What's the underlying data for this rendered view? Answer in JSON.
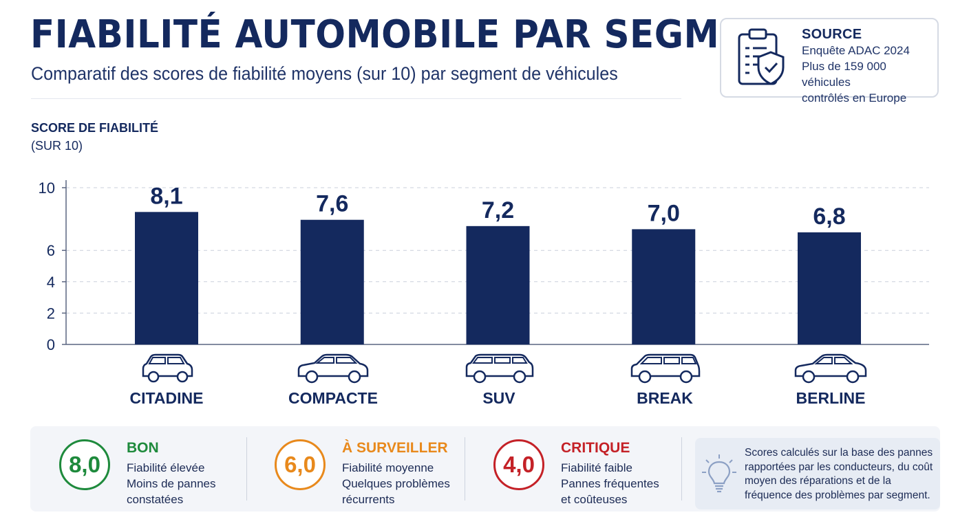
{
  "title": "FIABILITÉ AUTOMOBILE PAR SEGMENT",
  "subtitle": "Comparatif des scores de fiabilité moyens (sur 10) par segment de véhicules",
  "source": {
    "label": "SOURCE",
    "lines": [
      "Enquête ADAC 2024",
      "Plus de 159 000 véhicules",
      "contrôlés en Europe"
    ],
    "icon": "clipboard-shield-check-icon"
  },
  "chart_data": {
    "type": "bar",
    "ylabel_line1": "SCORE DE FIABILITÉ",
    "ylabel_line2": "(SUR 10)",
    "categories": [
      "CITADINE",
      "COMPACTE",
      "SUV",
      "BREAK",
      "BERLINE"
    ],
    "values": [
      8.1,
      7.6,
      7.2,
      7.0,
      6.8
    ],
    "value_labels": [
      "8,1",
      "7,6",
      "7,2",
      "7,0",
      "6,8"
    ],
    "yticks": [
      0,
      2,
      4,
      6,
      10
    ],
    "ytick_labels": [
      "0",
      "2",
      "4",
      "6",
      "10"
    ],
    "grid": true,
    "bar_color": "#14295e",
    "icons": [
      "city-car-icon",
      "compact-car-icon",
      "suv-car-icon",
      "estate-car-icon",
      "sedan-car-icon"
    ]
  },
  "legend": {
    "items": [
      {
        "badge": "8,0",
        "title": "BON",
        "lines": [
          "Fiabilité élevée",
          "Moins de pannes",
          "constatées"
        ],
        "color": "#1e8a3c"
      },
      {
        "badge": "6,0",
        "title": "À SURVEILLER",
        "lines": [
          "Fiabilité moyenne",
          "Quelques problèmes",
          "récurrents"
        ],
        "color": "#e8891c"
      },
      {
        "badge": "4,0",
        "title": "CRITIQUE",
        "lines": [
          "Fiabilité faible",
          "Pannes fréquentes",
          "et coûteuses"
        ],
        "color": "#c42127"
      }
    ],
    "note": "Scores calculés sur la base des pannes rapportées par les conducteurs, du coût moyen des réparations et de la fréquence des problèmes par segment.",
    "note_icon": "lightbulb-icon"
  }
}
